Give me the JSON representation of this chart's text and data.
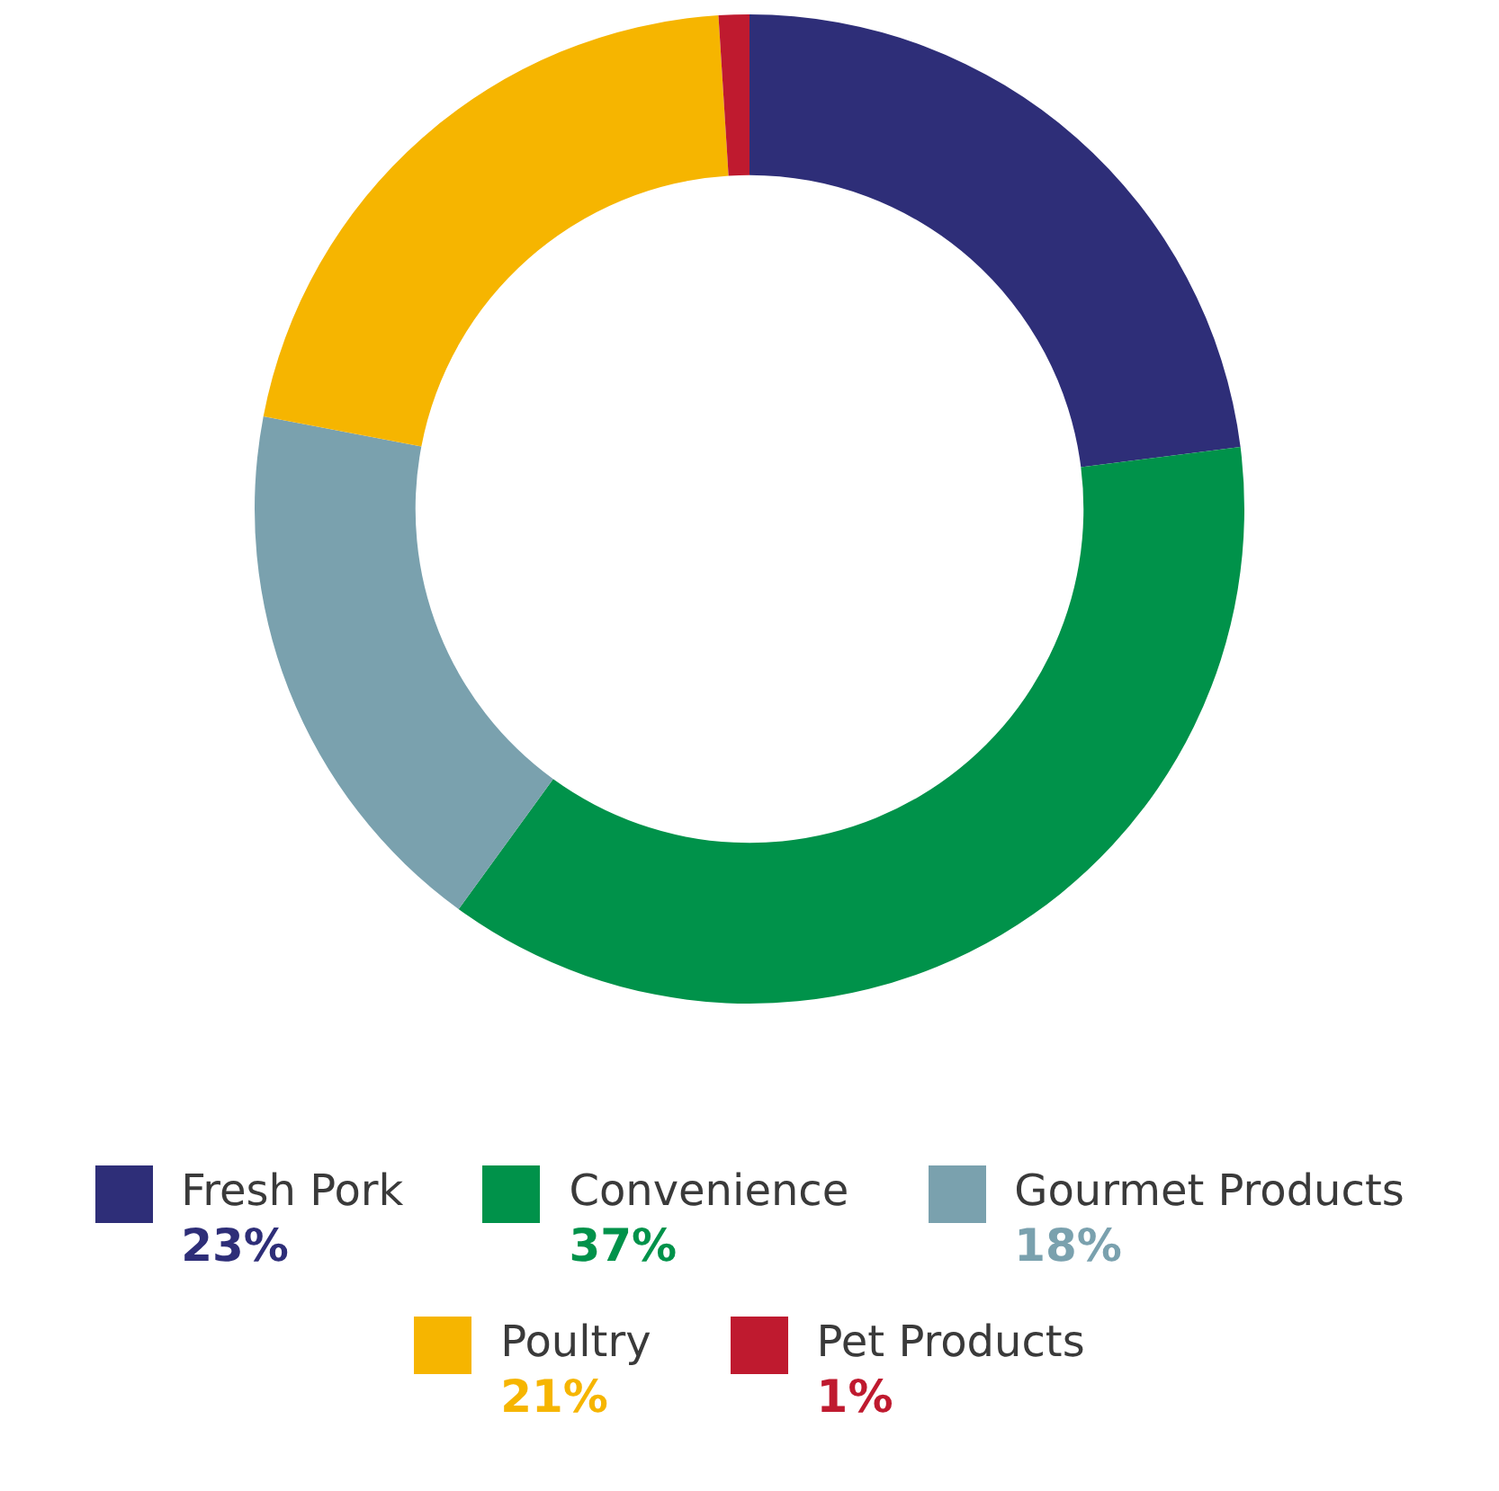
{
  "chart_data": {
    "type": "donut",
    "categories": [
      "Fresh Pork",
      "Convenience",
      "Gourmet Products",
      "Poultry",
      "Pet Products"
    ],
    "values": [
      23,
      37,
      18,
      21,
      1
    ],
    "value_labels": [
      "23%",
      "37%",
      "18%",
      "21%",
      "1%"
    ],
    "colors": [
      "#2e2e78",
      "#00924a",
      "#7aa1ae",
      "#f6b500",
      "#bf1a2f"
    ],
    "legend": "bottom"
  }
}
